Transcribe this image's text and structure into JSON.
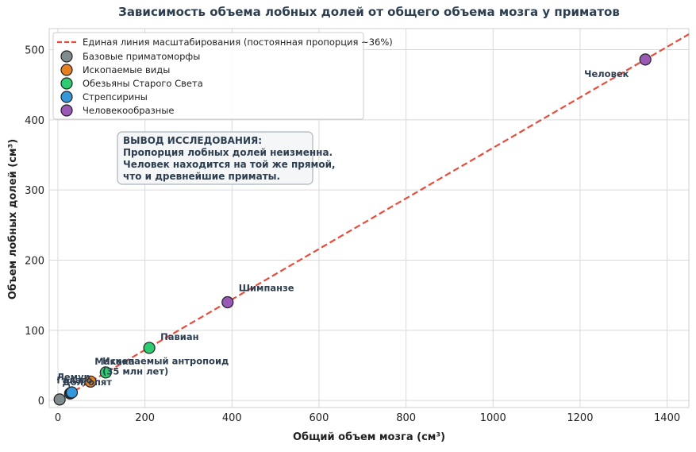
{
  "chart_data": {
    "type": "scatter",
    "title": "Зависимость объема лобных долей от общего объема мозга у приматов",
    "xlabel": "Общий объем мозга (см³)",
    "ylabel": "Объем лобных долей (см³)",
    "xlim": [
      -20,
      1450
    ],
    "ylim": [
      -10,
      530
    ],
    "xticks": [
      0,
      200,
      400,
      600,
      800,
      1000,
      1200,
      1400
    ],
    "yticks": [
      0,
      100,
      200,
      300,
      400,
      500
    ],
    "grid": true,
    "legend_position": "top-left",
    "trend_line": {
      "label": "Единая линия масштабирования (постоянная пропорция ~36%)",
      "color": "#e74c3c",
      "slope": 0.36
    },
    "series": [
      {
        "name": "Базовые приматоморфы",
        "color": "#7f8c8d",
        "points": [
          {
            "x": 4,
            "y": 1.5,
            "label": ""
          }
        ]
      },
      {
        "name": "Ископаемые виды",
        "color": "#e67e22",
        "points": [
          {
            "x": 75,
            "y": 27,
            "label": "Ископаемый антропоид\n(35 млн лет)"
          }
        ]
      },
      {
        "name": "Обезьяны Старого Света",
        "color": "#2ecc71",
        "points": [
          {
            "x": 110,
            "y": 40,
            "label": "Макака"
          },
          {
            "x": 210,
            "y": 75,
            "label": "Павиан"
          }
        ]
      },
      {
        "name": "Стрепсирины",
        "color": "#3498db",
        "points": [
          {
            "x": 28,
            "y": 10,
            "label": "Лемур"
          },
          {
            "x": 30,
            "y": 11,
            "label": "Галаго"
          },
          {
            "x": 32,
            "y": 11.5,
            "label": "Долгопят"
          }
        ]
      },
      {
        "name": "Человекообразные",
        "color": "#9b59b6",
        "points": [
          {
            "x": 390,
            "y": 140,
            "label": "Шимпанзе"
          },
          {
            "x": 1350,
            "y": 486,
            "label": "Человек"
          }
        ]
      }
    ],
    "annotation": {
      "lines": [
        "ВЫВОД ИССЛЕДОВАНИЯ:",
        "Пропорция лобных долей неизменна.",
        "Человек находится на той же прямой,",
        "что и древнейшие приматы."
      ]
    }
  }
}
